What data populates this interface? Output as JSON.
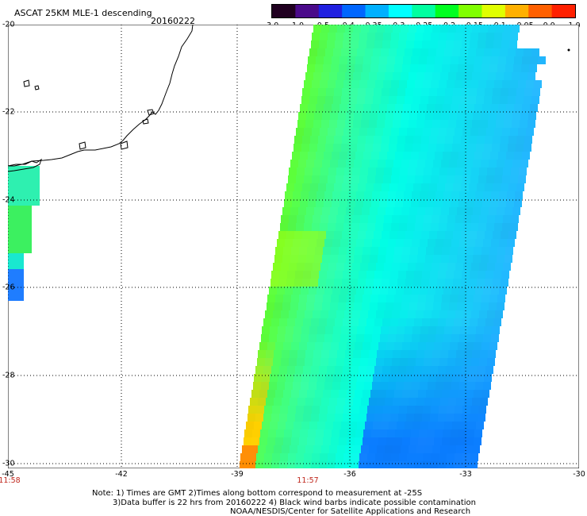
{
  "header": {
    "title": "ASCAT 25KM MLE-1 descending",
    "date": "20160222"
  },
  "colorbar": {
    "labels": [
      "-3.0",
      "-1.0",
      "-0.5",
      "-0.4",
      "-0.35",
      "-0.3",
      "-0.25",
      "-0.2",
      "-0.15",
      "-0.1",
      "-0.05",
      "0.0",
      "1.0"
    ],
    "colors": [
      "#200020",
      "#4a0a8a",
      "#2020e0",
      "#0066ff",
      "#00b0ff",
      "#00ffff",
      "#00ffa0",
      "#00ff20",
      "#80ff00",
      "#e0ff00",
      "#ffb000",
      "#ff6000",
      "#ff2000"
    ]
  },
  "axes": {
    "lat_labels": [
      "-20",
      "-22",
      "-24",
      "-26",
      "-28",
      "-30"
    ],
    "lon_labels": [
      "-45",
      "-42",
      "-39",
      "-36",
      "-33",
      "-30"
    ],
    "time_labels": [
      "11:58",
      "11:57"
    ]
  },
  "notes": {
    "line1": "Note: 1) Times are GMT 2)Times along bottom correspond to measurement at -25S",
    "line2": "3)Data buffer is 22 hrs from 20160222 4) Black wind barbs indicate possible contamination",
    "line3": "NOAA/NESDIS/Center for Satellite Applications and Research"
  }
}
